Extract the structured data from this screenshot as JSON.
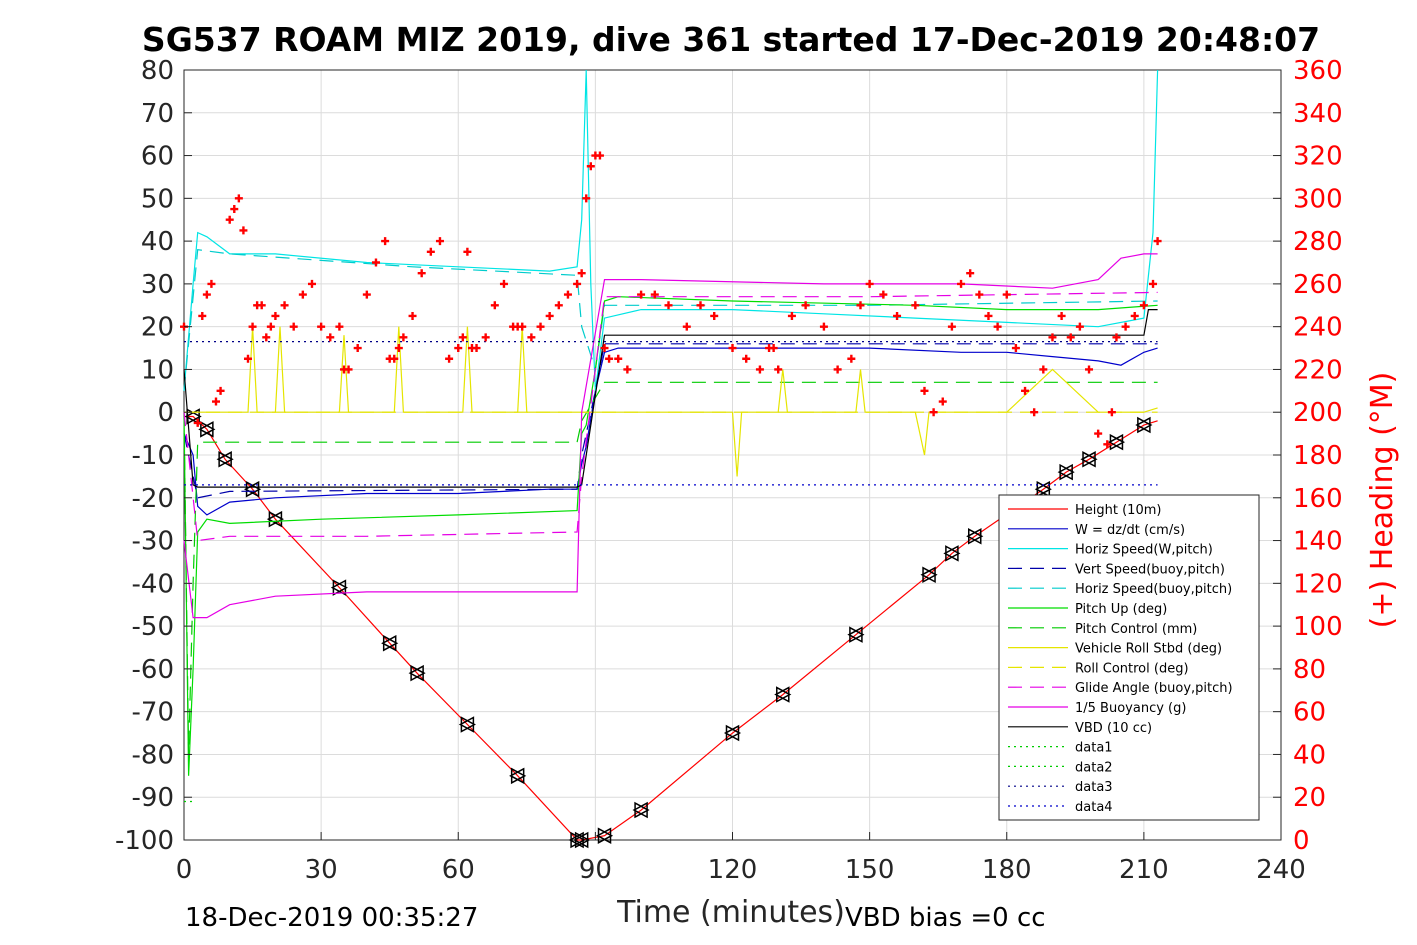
{
  "chart_data": {
    "type": "line",
    "title": "SG537 ROAM MIZ 2019, dive 361 started 17-Dec-2019 20:48:07",
    "xlabel": "Time (minutes)",
    "ylabel": "",
    "ylabel_right": "(+) Heading (°M)",
    "xlim": [
      0,
      240
    ],
    "ylim": [
      -100,
      80
    ],
    "ylim_right": [
      0,
      360
    ],
    "xticks": [
      0,
      30,
      60,
      90,
      120,
      150,
      180,
      210,
      240
    ],
    "yticks": [
      80,
      70,
      60,
      50,
      40,
      30,
      20,
      10,
      0,
      -10,
      -20,
      -30,
      -40,
      -50,
      -60,
      -70,
      -80,
      -90,
      -100
    ],
    "yticks_right": [
      360,
      340,
      320,
      300,
      280,
      260,
      240,
      220,
      200,
      180,
      160,
      140,
      120,
      100,
      80,
      60,
      40,
      20,
      0
    ],
    "grid": true,
    "legend_position": "bottom-right",
    "footer_left": "18-Dec-2019 00:35:27",
    "footer_right": "VBD bias =0 cc",
    "series": [
      {
        "name": "Height (10m)",
        "color": "#ff0000",
        "style": "solid",
        "x": [
          0,
          2,
          5,
          9,
          15,
          20,
          34,
          45,
          51,
          62,
          73,
          86,
          87,
          92,
          100,
          120,
          131,
          147,
          163,
          168,
          173,
          188,
          193,
          198,
          204,
          210,
          213
        ],
        "y": [
          -1,
          -1,
          -4,
          -11,
          -18,
          -25,
          -41,
          -54,
          -61,
          -73,
          -85,
          -100,
          -100,
          -99,
          -93,
          -75,
          -66,
          -52,
          -38,
          -33,
          -29,
          -18,
          -14,
          -11,
          -7,
          -3,
          -2
        ]
      },
      {
        "name": "W = dz/dt (cm/s)",
        "color": "#0000cc",
        "style": "solid",
        "x": [
          0,
          2,
          3,
          5,
          10,
          20,
          40,
          60,
          80,
          86,
          87,
          88,
          90,
          92,
          95,
          110,
          130,
          150,
          170,
          180,
          190,
          200,
          205,
          210,
          213
        ],
        "y": [
          -5,
          -10,
          -22,
          -24,
          -21,
          -20,
          -19,
          -19,
          -18,
          -18,
          -12,
          -8,
          5,
          14,
          15,
          15,
          15,
          15,
          14,
          14,
          13,
          12,
          11,
          14,
          15
        ]
      },
      {
        "name": "Horiz Speed(W,pitch)",
        "color": "#00e5e5",
        "style": "solid",
        "x": [
          0,
          2,
          3,
          5,
          10,
          20,
          40,
          60,
          80,
          86,
          87,
          88,
          89,
          90,
          92,
          100,
          120,
          140,
          160,
          180,
          200,
          210,
          212,
          213
        ],
        "y": [
          5,
          30,
          42,
          41,
          37,
          37,
          35,
          34,
          33,
          34,
          45,
          80,
          30,
          5,
          22,
          24,
          24,
          23,
          22,
          21,
          20,
          22,
          42,
          80
        ]
      },
      {
        "name": "Vert Speed(buoy,pitch)",
        "color": "#0000aa",
        "style": "dashed",
        "x": [
          0,
          3,
          10,
          86,
          87,
          90,
          92,
          213
        ],
        "y": [
          -5,
          -20,
          -18.5,
          -18,
          -10,
          5,
          16,
          16
        ]
      },
      {
        "name": "Horiz Speed(buoy,pitch)",
        "color": "#00cccc",
        "style": "dashed",
        "x": [
          0,
          3,
          10,
          50,
          86,
          87,
          90,
          92,
          150,
          213
        ],
        "y": [
          5,
          38,
          37,
          34,
          32,
          20,
          10,
          25,
          25,
          26
        ]
      },
      {
        "name": "Pitch Up (deg)",
        "color": "#00dd00",
        "style": "solid",
        "x": [
          0,
          1,
          2,
          3,
          5,
          10,
          30,
          60,
          86,
          87,
          88,
          90,
          92,
          95,
          120,
          160,
          180,
          200,
          213
        ],
        "y": [
          0,
          -85,
          -60,
          -28,
          -25,
          -26,
          -25,
          -24,
          -23,
          -5,
          -3,
          10,
          26,
          27,
          26,
          25,
          24,
          24,
          25
        ]
      },
      {
        "name": "Pitch Control (mm)",
        "color": "#00cc00",
        "style": "dashed",
        "x": [
          0,
          1,
          2,
          3,
          86,
          87,
          92,
          213
        ],
        "y": [
          0,
          -80,
          -40,
          -7,
          -7,
          -2,
          7,
          7
        ]
      },
      {
        "name": "Vehicle Roll Stbd (deg)",
        "color": "#e5e500",
        "style": "solid",
        "x": [
          0,
          5,
          14,
          15,
          16,
          20,
          21,
          22,
          34,
          35,
          36,
          46,
          47,
          48,
          61,
          62,
          63,
          73,
          74,
          75,
          86,
          87,
          90,
          100,
          120,
          121,
          122,
          130,
          131,
          132,
          147,
          148,
          149,
          160,
          162,
          163,
          165,
          180,
          190,
          200,
          210,
          213
        ],
        "y": [
          0,
          0,
          0,
          20,
          0,
          0,
          20,
          0,
          0,
          18,
          0,
          0,
          20,
          0,
          0,
          20,
          0,
          0,
          20,
          0,
          0,
          0,
          0,
          0,
          0,
          -15,
          0,
          0,
          10,
          0,
          0,
          10,
          0,
          0,
          -10,
          0,
          0,
          0,
          10,
          0,
          0,
          1
        ]
      },
      {
        "name": "Roll Control (deg)",
        "color": "#e5e500",
        "style": "dashed",
        "x": [
          0,
          86,
          87,
          92,
          213
        ],
        "y": [
          0,
          0,
          0,
          0,
          0
        ]
      },
      {
        "name": "Glide Angle (buoy,pitch)",
        "color": "#e500e5",
        "style": "dashed",
        "x": [
          0,
          3,
          10,
          40,
          86,
          87,
          92,
          150,
          213
        ],
        "y": [
          0,
          -30,
          -29,
          -29,
          -28,
          -15,
          27,
          27,
          28
        ]
      },
      {
        "name": "1/5 Buoyancy (g)",
        "color": "#e500e5",
        "style": "solid",
        "x": [
          0,
          2,
          5,
          10,
          20,
          40,
          60,
          86,
          87,
          92,
          100,
          140,
          170,
          190,
          200,
          205,
          210,
          213
        ],
        "y": [
          -30,
          -48,
          -48,
          -45,
          -43,
          -42,
          -42,
          -42,
          0,
          31,
          31,
          30,
          30,
          29,
          31,
          36,
          37,
          37
        ]
      },
      {
        "name": "VBD (10 cc)",
        "color": "#000000",
        "style": "solid",
        "x": [
          0,
          2,
          3,
          86,
          87,
          92,
          210,
          211,
          213
        ],
        "y": [
          10,
          -17,
          -17.5,
          -17.5,
          -17,
          18,
          18,
          24,
          24
        ]
      },
      {
        "name": "data1",
        "color": "#00cc00",
        "style": "dotted",
        "x": [
          0,
          1,
          2
        ],
        "y": [
          -91,
          -91,
          -91
        ]
      },
      {
        "name": "data2",
        "color": "#00cc00",
        "style": "dotted",
        "x": [],
        "y": []
      },
      {
        "name": "data3",
        "color": "#000088",
        "style": "dotted",
        "x": [
          0,
          86,
          87,
          213
        ],
        "y": [
          16.5,
          16.5,
          16.5,
          16.5
        ]
      },
      {
        "name": "data4",
        "color": "#0000cc",
        "style": "dotted",
        "x": [
          0,
          86,
          87,
          213
        ],
        "y": [
          -17,
          -17,
          -17,
          -17
        ]
      },
      {
        "name": "Heading",
        "color": "#ff0000",
        "style": "markers",
        "axis": "right",
        "x": [
          0,
          3,
          4,
          5,
          6,
          7,
          8,
          10,
          11,
          12,
          13,
          14,
          15,
          16,
          17,
          18,
          19,
          20,
          22,
          24,
          26,
          28,
          30,
          32,
          34,
          35,
          36,
          38,
          40,
          42,
          44,
          45,
          46,
          47,
          48,
          50,
          52,
          54,
          56,
          58,
          60,
          61,
          62,
          63,
          64,
          66,
          68,
          70,
          72,
          73,
          74,
          76,
          78,
          80,
          82,
          84,
          86,
          87,
          88,
          89,
          90,
          91,
          92,
          93,
          95,
          97,
          100,
          103,
          106,
          110,
          113,
          116,
          120,
          123,
          126,
          128,
          129,
          130,
          133,
          136,
          140,
          143,
          146,
          148,
          150,
          153,
          156,
          160,
          162,
          164,
          166,
          168,
          170,
          172,
          174,
          176,
          178,
          180,
          182,
          184,
          186,
          188,
          190,
          192,
          194,
          196,
          198,
          200,
          202,
          203,
          204,
          206,
          208,
          210,
          212,
          213
        ],
        "y": [
          240,
          195,
          245,
          255,
          260,
          205,
          210,
          290,
          295,
          300,
          285,
          225,
          240,
          250,
          250,
          235,
          240,
          245,
          250,
          240,
          255,
          260,
          240,
          235,
          240,
          220,
          220,
          230,
          255,
          270,
          280,
          225,
          225,
          230,
          235,
          245,
          265,
          275,
          280,
          225,
          230,
          235,
          275,
          230,
          230,
          235,
          250,
          260,
          240,
          240,
          240,
          235,
          240,
          245,
          250,
          255,
          260,
          265,
          300,
          315,
          320,
          320,
          230,
          225,
          225,
          220,
          255,
          255,
          250,
          240,
          250,
          245,
          230,
          225,
          220,
          230,
          230,
          220,
          245,
          250,
          240,
          220,
          225,
          250,
          260,
          255,
          245,
          250,
          210,
          200,
          205,
          240,
          260,
          265,
          255,
          245,
          240,
          255,
          230,
          210,
          200,
          220,
          235,
          245,
          235,
          240,
          220,
          190,
          185,
          200,
          235,
          240,
          245,
          250,
          260,
          280
        ]
      }
    ]
  }
}
